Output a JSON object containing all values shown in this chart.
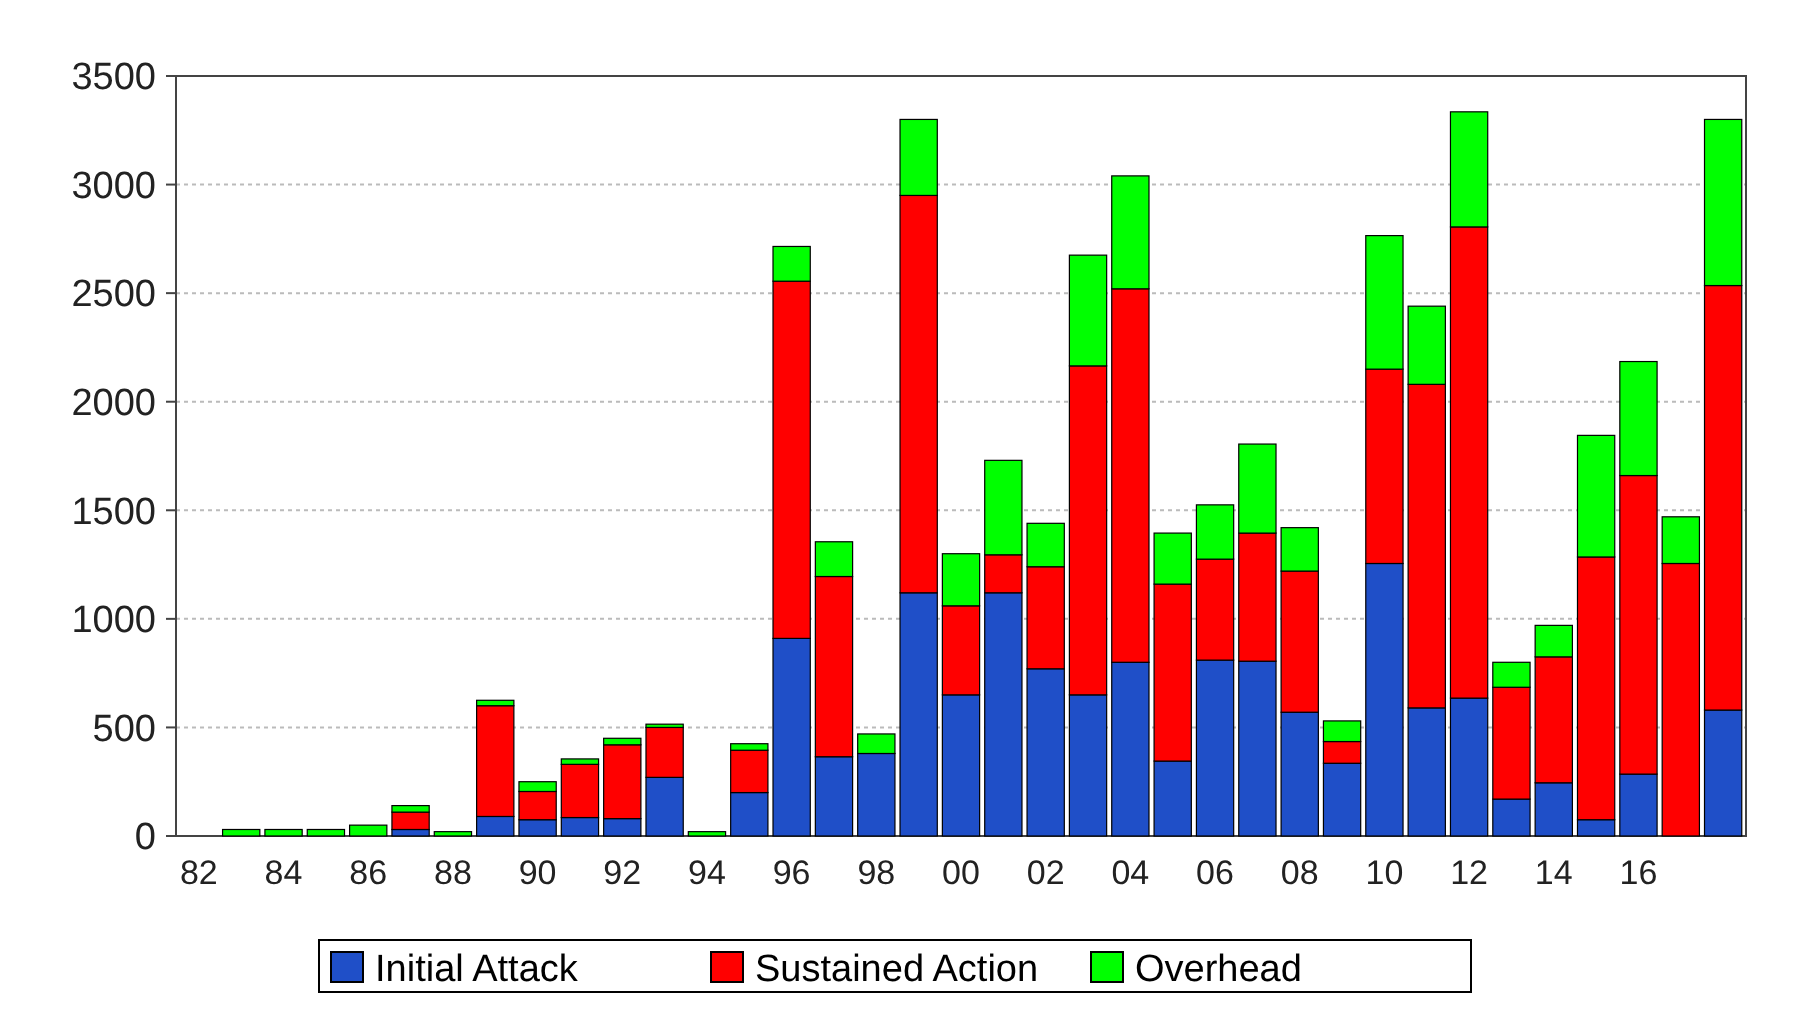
{
  "chart_data": {
    "type": "bar",
    "stacked": true,
    "categories": [
      "82",
      null,
      "84",
      null,
      "86",
      null,
      "88",
      null,
      "90",
      null,
      "92",
      null,
      "94",
      null,
      "96",
      null,
      "98",
      null,
      "00",
      null,
      "02",
      null,
      "04",
      null,
      "06",
      null,
      "08",
      null,
      "10",
      null,
      "12",
      null,
      "14",
      null,
      "16",
      null,
      null
    ],
    "series": [
      {
        "name": "Initial Attack",
        "color": "#1f4fc8",
        "values": [
          null,
          0,
          0,
          0,
          0,
          30,
          0,
          90,
          75,
          85,
          80,
          270,
          0,
          200,
          910,
          365,
          380,
          1120,
          650,
          1120,
          770,
          650,
          800,
          345,
          810,
          805,
          570,
          335,
          1255,
          590,
          635,
          170,
          245,
          75,
          285,
          0,
          580
        ]
      },
      {
        "name": "Sustained Action",
        "color": "#ff0000",
        "values": [
          null,
          0,
          0,
          0,
          0,
          80,
          0,
          510,
          130,
          245,
          340,
          230,
          0,
          195,
          1645,
          830,
          0,
          1830,
          410,
          175,
          470,
          1515,
          1720,
          815,
          465,
          590,
          650,
          100,
          895,
          1490,
          2170,
          515,
          580,
          1210,
          1375,
          1255,
          1955
        ]
      },
      {
        "name": "Overhead",
        "color": "#00ff00",
        "values": [
          null,
          30,
          30,
          30,
          50,
          30,
          20,
          25,
          45,
          25,
          30,
          15,
          20,
          30,
          160,
          160,
          90,
          350,
          240,
          435,
          200,
          510,
          520,
          235,
          250,
          410,
          200,
          95,
          615,
          360,
          530,
          115,
          145,
          560,
          525,
          215,
          765
        ]
      }
    ],
    "ylim": [
      0,
      3500
    ],
    "yticks": [
      0,
      500,
      1000,
      1500,
      2000,
      2500,
      3000,
      3500
    ],
    "grid": "y",
    "legend": "bottom"
  }
}
